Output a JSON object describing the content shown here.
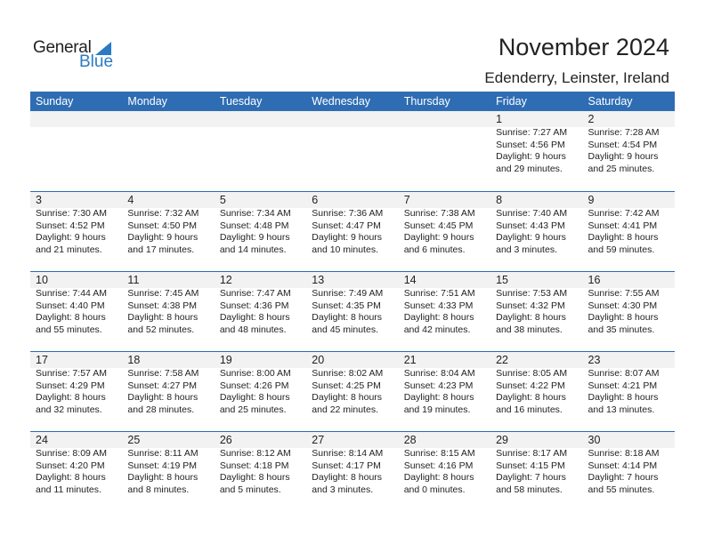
{
  "logo": {
    "general": "General",
    "blue": "Blue"
  },
  "title": "November 2024",
  "location": "Edenderry, Leinster, Ireland",
  "colors": {
    "header": "#2e6db4",
    "logo_blue": "#2a7bc4",
    "date_band": "#f2f2f2"
  },
  "weekdays": [
    "Sunday",
    "Monday",
    "Tuesday",
    "Wednesday",
    "Thursday",
    "Friday",
    "Saturday"
  ],
  "weeks": [
    [
      null,
      null,
      null,
      null,
      null,
      {
        "day": "1",
        "sunrise": "Sunrise: 7:27 AM",
        "sunset": "Sunset: 4:56 PM",
        "daylight1": "Daylight: 9 hours",
        "daylight2": "and 29 minutes."
      },
      {
        "day": "2",
        "sunrise": "Sunrise: 7:28 AM",
        "sunset": "Sunset: 4:54 PM",
        "daylight1": "Daylight: 9 hours",
        "daylight2": "and 25 minutes."
      }
    ],
    [
      {
        "day": "3",
        "sunrise": "Sunrise: 7:30 AM",
        "sunset": "Sunset: 4:52 PM",
        "daylight1": "Daylight: 9 hours",
        "daylight2": "and 21 minutes."
      },
      {
        "day": "4",
        "sunrise": "Sunrise: 7:32 AM",
        "sunset": "Sunset: 4:50 PM",
        "daylight1": "Daylight: 9 hours",
        "daylight2": "and 17 minutes."
      },
      {
        "day": "5",
        "sunrise": "Sunrise: 7:34 AM",
        "sunset": "Sunset: 4:48 PM",
        "daylight1": "Daylight: 9 hours",
        "daylight2": "and 14 minutes."
      },
      {
        "day": "6",
        "sunrise": "Sunrise: 7:36 AM",
        "sunset": "Sunset: 4:47 PM",
        "daylight1": "Daylight: 9 hours",
        "daylight2": "and 10 minutes."
      },
      {
        "day": "7",
        "sunrise": "Sunrise: 7:38 AM",
        "sunset": "Sunset: 4:45 PM",
        "daylight1": "Daylight: 9 hours",
        "daylight2": "and 6 minutes."
      },
      {
        "day": "8",
        "sunrise": "Sunrise: 7:40 AM",
        "sunset": "Sunset: 4:43 PM",
        "daylight1": "Daylight: 9 hours",
        "daylight2": "and 3 minutes."
      },
      {
        "day": "9",
        "sunrise": "Sunrise: 7:42 AM",
        "sunset": "Sunset: 4:41 PM",
        "daylight1": "Daylight: 8 hours",
        "daylight2": "and 59 minutes."
      }
    ],
    [
      {
        "day": "10",
        "sunrise": "Sunrise: 7:44 AM",
        "sunset": "Sunset: 4:40 PM",
        "daylight1": "Daylight: 8 hours",
        "daylight2": "and 55 minutes."
      },
      {
        "day": "11",
        "sunrise": "Sunrise: 7:45 AM",
        "sunset": "Sunset: 4:38 PM",
        "daylight1": "Daylight: 8 hours",
        "daylight2": "and 52 minutes."
      },
      {
        "day": "12",
        "sunrise": "Sunrise: 7:47 AM",
        "sunset": "Sunset: 4:36 PM",
        "daylight1": "Daylight: 8 hours",
        "daylight2": "and 48 minutes."
      },
      {
        "day": "13",
        "sunrise": "Sunrise: 7:49 AM",
        "sunset": "Sunset: 4:35 PM",
        "daylight1": "Daylight: 8 hours",
        "daylight2": "and 45 minutes."
      },
      {
        "day": "14",
        "sunrise": "Sunrise: 7:51 AM",
        "sunset": "Sunset: 4:33 PM",
        "daylight1": "Daylight: 8 hours",
        "daylight2": "and 42 minutes."
      },
      {
        "day": "15",
        "sunrise": "Sunrise: 7:53 AM",
        "sunset": "Sunset: 4:32 PM",
        "daylight1": "Daylight: 8 hours",
        "daylight2": "and 38 minutes."
      },
      {
        "day": "16",
        "sunrise": "Sunrise: 7:55 AM",
        "sunset": "Sunset: 4:30 PM",
        "daylight1": "Daylight: 8 hours",
        "daylight2": "and 35 minutes."
      }
    ],
    [
      {
        "day": "17",
        "sunrise": "Sunrise: 7:57 AM",
        "sunset": "Sunset: 4:29 PM",
        "daylight1": "Daylight: 8 hours",
        "daylight2": "and 32 minutes."
      },
      {
        "day": "18",
        "sunrise": "Sunrise: 7:58 AM",
        "sunset": "Sunset: 4:27 PM",
        "daylight1": "Daylight: 8 hours",
        "daylight2": "and 28 minutes."
      },
      {
        "day": "19",
        "sunrise": "Sunrise: 8:00 AM",
        "sunset": "Sunset: 4:26 PM",
        "daylight1": "Daylight: 8 hours",
        "daylight2": "and 25 minutes."
      },
      {
        "day": "20",
        "sunrise": "Sunrise: 8:02 AM",
        "sunset": "Sunset: 4:25 PM",
        "daylight1": "Daylight: 8 hours",
        "daylight2": "and 22 minutes."
      },
      {
        "day": "21",
        "sunrise": "Sunrise: 8:04 AM",
        "sunset": "Sunset: 4:23 PM",
        "daylight1": "Daylight: 8 hours",
        "daylight2": "and 19 minutes."
      },
      {
        "day": "22",
        "sunrise": "Sunrise: 8:05 AM",
        "sunset": "Sunset: 4:22 PM",
        "daylight1": "Daylight: 8 hours",
        "daylight2": "and 16 minutes."
      },
      {
        "day": "23",
        "sunrise": "Sunrise: 8:07 AM",
        "sunset": "Sunset: 4:21 PM",
        "daylight1": "Daylight: 8 hours",
        "daylight2": "and 13 minutes."
      }
    ],
    [
      {
        "day": "24",
        "sunrise": "Sunrise: 8:09 AM",
        "sunset": "Sunset: 4:20 PM",
        "daylight1": "Daylight: 8 hours",
        "daylight2": "and 11 minutes."
      },
      {
        "day": "25",
        "sunrise": "Sunrise: 8:11 AM",
        "sunset": "Sunset: 4:19 PM",
        "daylight1": "Daylight: 8 hours",
        "daylight2": "and 8 minutes."
      },
      {
        "day": "26",
        "sunrise": "Sunrise: 8:12 AM",
        "sunset": "Sunset: 4:18 PM",
        "daylight1": "Daylight: 8 hours",
        "daylight2": "and 5 minutes."
      },
      {
        "day": "27",
        "sunrise": "Sunrise: 8:14 AM",
        "sunset": "Sunset: 4:17 PM",
        "daylight1": "Daylight: 8 hours",
        "daylight2": "and 3 minutes."
      },
      {
        "day": "28",
        "sunrise": "Sunrise: 8:15 AM",
        "sunset": "Sunset: 4:16 PM",
        "daylight1": "Daylight: 8 hours",
        "daylight2": "and 0 minutes."
      },
      {
        "day": "29",
        "sunrise": "Sunrise: 8:17 AM",
        "sunset": "Sunset: 4:15 PM",
        "daylight1": "Daylight: 7 hours",
        "daylight2": "and 58 minutes."
      },
      {
        "day": "30",
        "sunrise": "Sunrise: 8:18 AM",
        "sunset": "Sunset: 4:14 PM",
        "daylight1": "Daylight: 7 hours",
        "daylight2": "and 55 minutes."
      }
    ]
  ]
}
